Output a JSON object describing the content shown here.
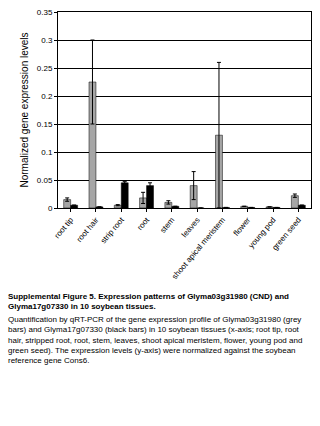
{
  "chart_data": {
    "type": "bar",
    "y_label": "Normalized gene expression levels",
    "categories": [
      "root tip",
      "root hair",
      "strip root",
      "root",
      "stem",
      "leaves",
      "shoot apical meristem",
      "flower",
      "young pod",
      "green seed"
    ],
    "series": [
      {
        "color": "#a6a6a6",
        "values": [
          0.015,
          0.225,
          0.005,
          0.018,
          0.01,
          0.04,
          0.13,
          0.003,
          0.002,
          0.022
        ],
        "error": [
          0.003,
          0.075,
          0.001,
          0.01,
          0.003,
          0.025,
          0.13,
          0,
          0,
          0.003
        ]
      },
      {
        "color": "#000000",
        "values": [
          0.005,
          0.002,
          0.045,
          0.04,
          0.003,
          0,
          0.001,
          0.001,
          0.001,
          0.005
        ],
        "error": [
          0,
          0,
          0.002,
          0.005,
          0,
          0,
          0,
          0,
          0,
          0
        ]
      }
    ],
    "ylim": [
      0,
      0.35
    ],
    "yticks": [
      0,
      0.05,
      0.1,
      0.15,
      0.2,
      0.25,
      0.3,
      0.35
    ],
    "grid": true
  },
  "caption": {
    "title": "Supplemental Figure 5. Expression patterns of Glyma03g31980 (CND) and Glyma17g07330 in 10 soybean tissues.",
    "text": "Quantification by qRT-PCR of the gene expression profile of Glyma03g31980 (grey bars) and Glyma17g07330 (black bars) in 10 soybean tissues (x-axis; root tip, root hair, stripped root, root, stem, leaves, shoot apical meristem, flower, young pod and green seed). The expression levels (y-axis) were normalized against the soybean reference gene Cons6."
  }
}
